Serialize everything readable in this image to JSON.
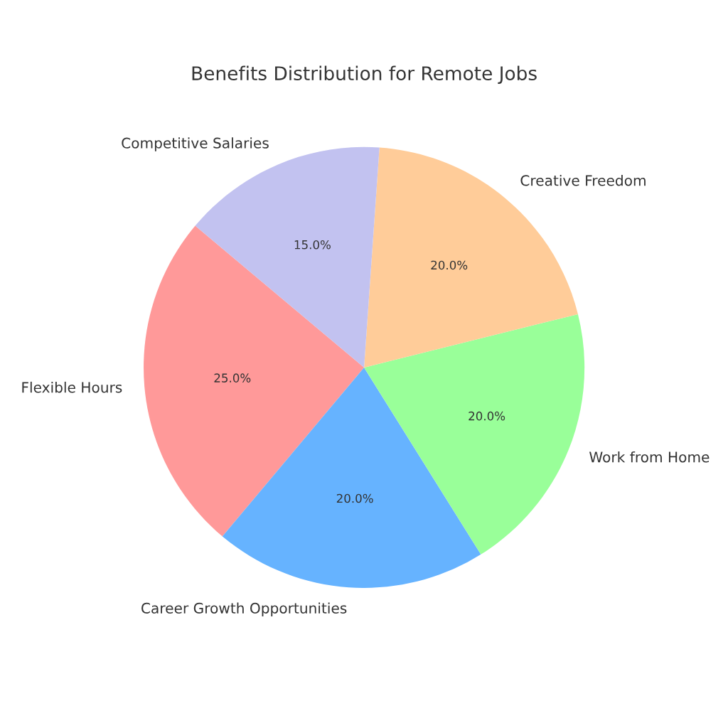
{
  "chart_data": {
    "type": "pie",
    "title": "Benefits Distribution for Remote Jobs",
    "categories": [
      "Flexible Hours",
      "Career Growth Opportunities",
      "Work from Home",
      "Creative Freedom",
      "Competitive Salaries"
    ],
    "values": [
      25,
      20,
      20,
      20,
      15
    ],
    "colors": [
      "#ff9999",
      "#66b3ff",
      "#99ff99",
      "#ffcc99",
      "#c2c2f0"
    ],
    "value_labels": [
      "25.0%",
      "20.0%",
      "20.0%",
      "20.0%",
      "15.0%"
    ]
  }
}
